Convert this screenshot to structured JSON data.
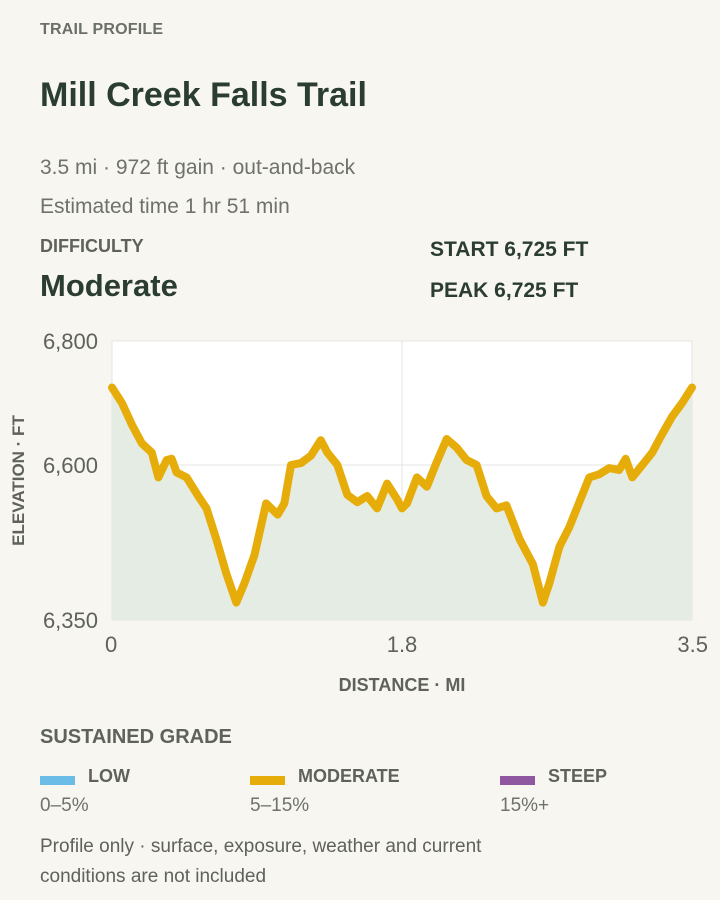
{
  "header": {
    "eyebrow": "TRAIL PROFILE",
    "title": "Mill Creek Falls Trail",
    "summary": "3.5 mi · 972 ft gain · out-and-back",
    "estimated_time": "Estimated time 1 hr 51 min"
  },
  "difficulty": {
    "label": "DIFFICULTY",
    "value": "Moderate"
  },
  "stats": {
    "start": "START 6,725 FT",
    "peak": "PEAK 6,725 FT"
  },
  "chart_data": {
    "type": "area",
    "xlabel": "DISTANCE · MI",
    "ylabel": "ELEVATION · FT",
    "xlim": [
      0,
      3.5
    ],
    "ylim": [
      6350,
      6800
    ],
    "x_ticks": [
      "0",
      "1.8",
      "3.5"
    ],
    "x_tick_values": [
      0,
      1.75,
      3.5
    ],
    "y_ticks": [
      "6,350",
      "6,600",
      "6,800"
    ],
    "y_tick_values": [
      6350,
      6600,
      6800
    ],
    "grid": true,
    "line_color": "#e6ad0a",
    "fill_color": "#e5ece3",
    "x": [
      0,
      0.06,
      0.12,
      0.18,
      0.24,
      0.28,
      0.33,
      0.36,
      0.39,
      0.45,
      0.52,
      0.57,
      0.63,
      0.69,
      0.75,
      0.8,
      0.86,
      0.93,
      1.0,
      1.04,
      1.08,
      1.14,
      1.2,
      1.26,
      1.3,
      1.36,
      1.42,
      1.48,
      1.54,
      1.6,
      1.66,
      1.72,
      1.75,
      1.78,
      1.84,
      1.9,
      1.96,
      2.02,
      2.08,
      2.14,
      2.2,
      2.26,
      2.32,
      2.38,
      2.46,
      2.54,
      2.6,
      2.64,
      2.7,
      2.76,
      2.82,
      2.88,
      2.94,
      3.0,
      3.06,
      3.1,
      3.14,
      3.2,
      3.26,
      3.32,
      3.38,
      3.44,
      3.5
    ],
    "y": [
      6725,
      6700,
      6665,
      6635,
      6620,
      6580,
      6608,
      6610,
      6588,
      6580,
      6550,
      6530,
      6480,
      6425,
      6378,
      6410,
      6455,
      6538,
      6520,
      6538,
      6600,
      6603,
      6615,
      6640,
      6620,
      6600,
      6552,
      6540,
      6550,
      6530,
      6570,
      6545,
      6530,
      6538,
      6580,
      6565,
      6605,
      6642,
      6628,
      6608,
      6600,
      6550,
      6530,
      6535,
      6480,
      6440,
      6378,
      6410,
      6468,
      6500,
      6540,
      6580,
      6585,
      6595,
      6592,
      6610,
      6580,
      6600,
      6620,
      6650,
      6678,
      6700,
      6725
    ]
  },
  "grade": {
    "title": "SUSTAINED GRADE",
    "items": [
      {
        "name": "LOW",
        "range": "0–5%",
        "color": "#6bbce6"
      },
      {
        "name": "MODERATE",
        "range": "5–15%",
        "color": "#e6ad0a"
      },
      {
        "name": "STEEP",
        "range": "15%+",
        "color": "#8e57a0"
      }
    ]
  },
  "note": "Profile only · surface, exposure, weather and current conditions are not included"
}
